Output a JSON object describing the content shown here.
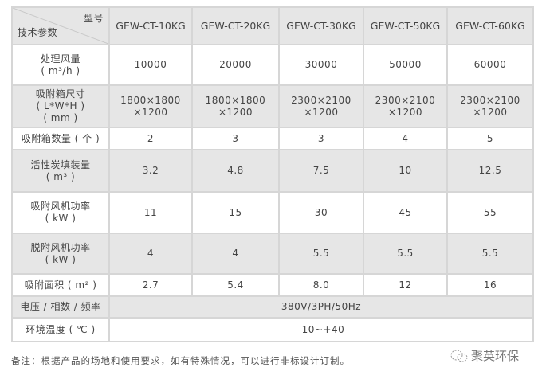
{
  "header": {
    "model_label": "型号",
    "param_label": "技术参数",
    "models": [
      "GEW-CT-10KG",
      "GEW-CT-20KG",
      "GEW-CT-30KG",
      "GEW-CT-50KG",
      "GEW-CT-60KG"
    ]
  },
  "rows": [
    {
      "label": [
        "处理风量",
        "( m³/h )"
      ],
      "values": [
        "10000",
        "20000",
        "30000",
        "50000",
        "60000"
      ]
    },
    {
      "label": [
        "吸附箱尺寸",
        "( L*W*H )",
        "( mm )"
      ],
      "values": [
        [
          "1800×1800",
          "×1200"
        ],
        [
          "1800×1800",
          "×1200"
        ],
        [
          "2300×2100",
          "×1200"
        ],
        [
          "2300×2100",
          "×1200"
        ],
        [
          "2300×2100",
          "×1200"
        ]
      ]
    },
    {
      "label": [
        "吸附箱数量 ( 个 )"
      ],
      "values": [
        "2",
        "3",
        "3",
        "4",
        "5"
      ]
    },
    {
      "label": [
        "活性炭填装量",
        "( m³ )"
      ],
      "values": [
        "3.2",
        "4.8",
        "7.5",
        "10",
        "12.5"
      ]
    },
    {
      "label": [
        "吸附风机功率",
        "( kW )"
      ],
      "values": [
        "11",
        "15",
        "30",
        "45",
        "55"
      ]
    },
    {
      "label": [
        "脱附风机功率",
        "( kW )"
      ],
      "values": [
        "4",
        "4",
        "5.5",
        "5.5",
        "5.5"
      ]
    },
    {
      "label": [
        "吸附面积 ( m² )"
      ],
      "values": [
        "2.7",
        "5.4",
        "8.0",
        "12",
        "16"
      ]
    },
    {
      "label": [
        "电压 / 相数 / 频率"
      ],
      "merged": "380V/3PH/50Hz"
    },
    {
      "label": [
        "环境温度 ( ℃ )"
      ],
      "merged": "-10~+40"
    }
  ],
  "note": "备注：根据产品的场地和使用要求，如有特殊情况，可以进行非标设计订制。",
  "watermark": "聚英环保"
}
